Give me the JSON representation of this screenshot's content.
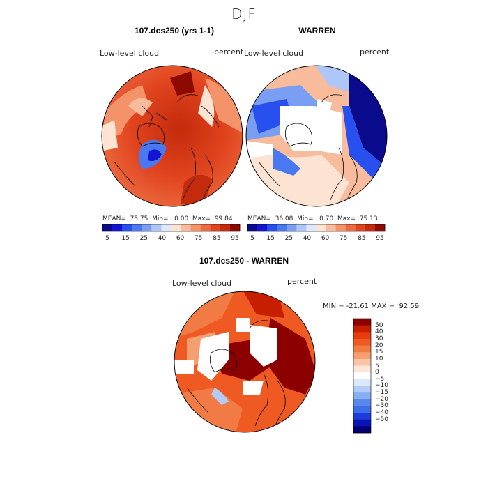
{
  "season": "DJF",
  "panel_left": {
    "title": "107.dcs250 (yrs 1-1)",
    "variable": "Low-level cloud",
    "units": "percent",
    "stats": "MEAN=  75.75  Min=   0.00  Max=  99.84"
  },
  "panel_right": {
    "title": "WARREN",
    "variable": "Low-level cloud",
    "units": "percent",
    "stats": "MEAN=  36.08  Min=   0.70  Max=  75.13"
  },
  "panel_diff": {
    "title": "107.dcs250 - WARREN",
    "variable": "Low-level cloud",
    "units": "percent",
    "minmax": "MIN = -21.61 MAX =  92.59"
  },
  "colorbar_abs": {
    "colors": [
      "#0a0a8c",
      "#1414d2",
      "#2850ee",
      "#4a78f0",
      "#7a9ef2",
      "#aec6f8",
      "#dde8fb",
      "#fde3d2",
      "#f8bb9c",
      "#f4926a",
      "#ec6a40",
      "#e0441e",
      "#c42a0c",
      "#8c0a02"
    ],
    "labels": [
      "5",
      "15",
      "25",
      "40",
      "60",
      "75",
      "85",
      "95"
    ]
  },
  "colorbar_diff": {
    "colors": [
      "#8c0000",
      "#c81e00",
      "#e63c10",
      "#ef5a22",
      "#f27a45",
      "#f59e72",
      "#fac4a8",
      "#fbe6da",
      "#ffffff",
      "#dce8fb",
      "#b2cbf7",
      "#88aef2",
      "#5a88ee",
      "#3c6eea",
      "#1e3cdc",
      "#0a14b4",
      "#050070"
    ],
    "labels": [
      "50",
      "40",
      "30",
      "20",
      "15",
      "10",
      "5",
      "0",
      "−5",
      "−10",
      "−15",
      "−20",
      "−30",
      "−40",
      "−50"
    ]
  }
}
